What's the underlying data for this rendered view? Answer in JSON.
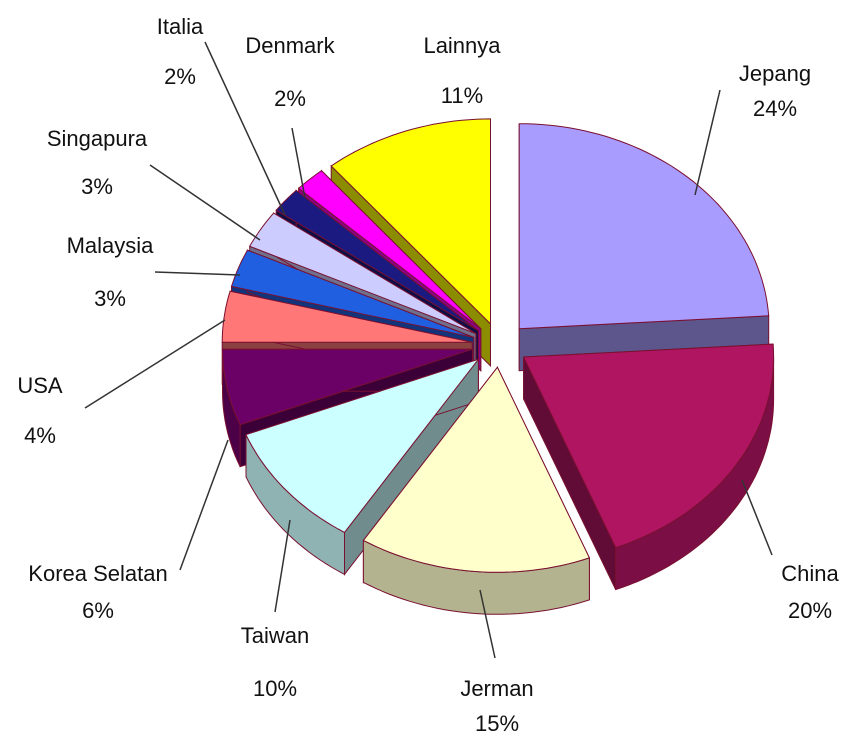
{
  "chart_data": {
    "type": "pie3d",
    "categories": [
      "Jepang",
      "China",
      "Jerman",
      "Taiwan",
      "Korea Selatan",
      "USA",
      "Malaysia",
      "Singapura",
      "Italia",
      "Denmark",
      "Lainnya"
    ],
    "values": [
      24,
      20,
      15,
      10,
      6,
      4,
      3,
      3,
      2,
      2,
      11
    ],
    "value_labels": [
      "24%",
      "20%",
      "15%",
      "10%",
      "6%",
      "4%",
      "3%",
      "3%",
      "2%",
      "2%",
      "11%"
    ],
    "colors": [
      "#a99cff",
      "#b01562",
      "#ffffcc",
      "#ccffff",
      "#6b0066",
      "#ff7777",
      "#1f5fe0",
      "#ccccff",
      "#1a1a80",
      "#ff00ff",
      "#ffff00"
    ]
  }
}
